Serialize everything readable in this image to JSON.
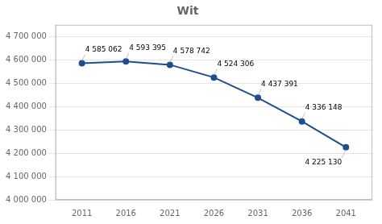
{
  "chart_data": {
    "type": "line",
    "title": "Wit",
    "x": [
      2011,
      2016,
      2021,
      2026,
      2031,
      2036,
      2041
    ],
    "values": [
      4585062,
      4593395,
      4578742,
      4524306,
      4437391,
      4336148,
      4225130
    ],
    "value_labels": [
      "4 585 062",
      "4 593 395",
      "4 578 742",
      "4 524 306",
      "4 437 391",
      "4 336 148",
      "4 225 130"
    ],
    "data_labels": true,
    "color": "#1f4e8c",
    "marker": "circle",
    "xlim": [
      2008,
      2044
    ],
    "xticks": [
      2011,
      2016,
      2021,
      2026,
      2031,
      2036,
      2041
    ],
    "ylim": [
      4000000,
      4750000
    ],
    "yticks": [
      {
        "value": 4000000,
        "label": "4 000 000"
      },
      {
        "value": 4100000,
        "label": "4 100 000"
      },
      {
        "value": 4200000,
        "label": "4 200 000"
      },
      {
        "value": 4300000,
        "label": "4 300 000"
      },
      {
        "value": 4400000,
        "label": "4 400 000"
      },
      {
        "value": 4500000,
        "label": "4 500 000"
      },
      {
        "value": 4600000,
        "label": "4 600 000"
      },
      {
        "value": 4700000,
        "label": "4 700 000"
      }
    ],
    "grid": "y"
  }
}
